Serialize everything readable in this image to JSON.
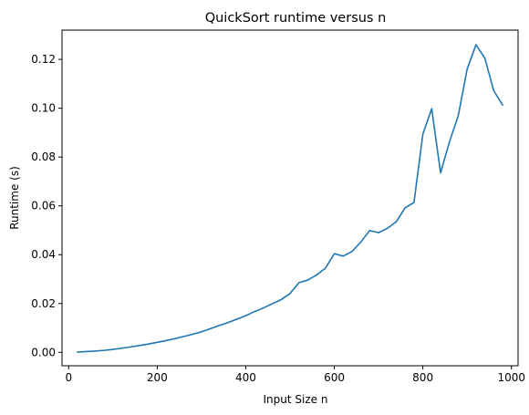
{
  "chart_data": {
    "type": "line",
    "title": "QuickSort runtime versus n",
    "xlabel": "Input Size n",
    "ylabel": "Runtime (s)",
    "xlim": [
      -15,
      1015
    ],
    "ylim": [
      -0.0055,
      0.132
    ],
    "xticks": [
      0,
      200,
      400,
      600,
      800,
      1000
    ],
    "xtick_labels": [
      "0",
      "200",
      "400",
      "600",
      "800",
      "1000"
    ],
    "yticks": [
      0.0,
      0.02,
      0.04,
      0.06,
      0.08,
      0.1,
      0.12
    ],
    "ytick_labels": [
      "0.00",
      "0.02",
      "0.04",
      "0.06",
      "0.08",
      "0.10",
      "0.12"
    ],
    "grid": false,
    "line_color": "#1f77b4",
    "series": [
      {
        "x": [
          20,
          40,
          60,
          80,
          100,
          120,
          140,
          160,
          180,
          200,
          220,
          240,
          260,
          280,
          300,
          320,
          340,
          360,
          380,
          400,
          420,
          440,
          460,
          480,
          500,
          520,
          540,
          560,
          580,
          600,
          620,
          640,
          660,
          680,
          700,
          720,
          740,
          760,
          780,
          800,
          820,
          840,
          860,
          880,
          900,
          920,
          940,
          960,
          980
        ],
        "y": [
          0.0001,
          0.0003,
          0.0005,
          0.0008,
          0.0012,
          0.0017,
          0.0022,
          0.0028,
          0.0034,
          0.0041,
          0.0048,
          0.0056,
          0.0065,
          0.0074,
          0.0084,
          0.0097,
          0.011,
          0.0122,
          0.0136,
          0.015,
          0.0167,
          0.0182,
          0.0199,
          0.0216,
          0.0241,
          0.0285,
          0.0296,
          0.0317,
          0.0345,
          0.0404,
          0.0394,
          0.0413,
          0.0452,
          0.0499,
          0.049,
          0.0508,
          0.0535,
          0.0592,
          0.0614,
          0.0894,
          0.0998,
          0.0735,
          0.0862,
          0.097,
          0.116,
          0.126,
          0.1205,
          0.1072,
          0.1013
        ]
      }
    ]
  }
}
